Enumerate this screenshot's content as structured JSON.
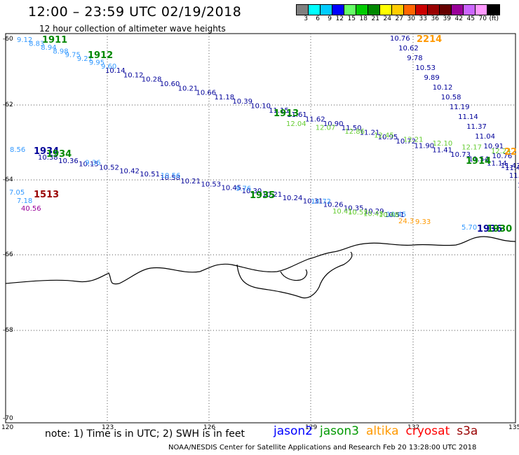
{
  "header": {
    "title": "12:00 – 23:59 UTC 02/19/2018",
    "subtitle": "12 hour collection of altimeter wave heights"
  },
  "colorbar": {
    "colors": [
      "#808080",
      "#00ffff",
      "#00ccff",
      "#0000ff",
      "#66ff66",
      "#00cc00",
      "#008800",
      "#ffff00",
      "#ffcc00",
      "#ff6600",
      "#cc0000",
      "#990000",
      "#660000",
      "#990099",
      "#cc66ff",
      "#ff99ff",
      "#000000"
    ],
    "ticks": [
      "3",
      "6",
      "9",
      "12",
      "15",
      "18",
      "21",
      "24",
      "27",
      "30",
      "33",
      "36",
      "39",
      "42",
      "45",
      "70",
      "(ft)"
    ]
  },
  "axes": {
    "lat_ticks": [
      "-60",
      "-62",
      "-64",
      "-66",
      "-68",
      "-70"
    ],
    "lon_ticks": [
      "120",
      "123",
      "126",
      "129",
      "132",
      "135"
    ]
  },
  "tracks": [
    {
      "color": "#000099",
      "labels": [
        "10.14",
        "10.12",
        "10.28",
        "10.60",
        "10.21",
        "10.66",
        "11.18",
        "10.39",
        "10.10",
        "11.15",
        "11.61",
        "11.62",
        "10.90",
        "11.50",
        "11.21",
        "10.95",
        "10.72",
        "11.90",
        "11.41",
        "10.73",
        "11.54",
        "11.14",
        "11.46"
      ]
    },
    {
      "color": "#3399ff",
      "labels": [
        "9.12",
        "8.83",
        "8.94",
        "8.98",
        "9.75",
        "9.21",
        "9.95",
        "9.60"
      ]
    },
    {
      "color": "#66cc33",
      "labels": [
        "12.04",
        "12.07",
        "12.86",
        "12.45",
        "12.21",
        "12.10",
        "12.17",
        "12.24"
      ]
    },
    {
      "color": "#000099",
      "labels": [
        "10.76",
        "10.62",
        "9.78",
        "10.53",
        "9.89",
        "10.12",
        "10.58",
        "11.19",
        "11.14",
        "11.37",
        "11.04",
        "10.91",
        "10.76",
        "11.43",
        "11.18",
        "10.9"
      ]
    },
    {
      "color": "#000099",
      "labels": [
        "10.38",
        "10.36",
        "10.15",
        "10.52",
        "10.42",
        "10.51",
        "10.58",
        "10.21",
        "10.53",
        "10.45",
        "10.30",
        "10.21",
        "10.24",
        "10.31",
        "10.26",
        "10.35",
        "10.29",
        "10.51"
      ]
    },
    {
      "color": "#3399ff",
      "labels": [
        "8.56",
        "9.36",
        "10.56",
        "9.76",
        "10.72",
        "10.45",
        "5.70"
      ]
    },
    {
      "color": "#66cc33",
      "labels": [
        "10.41",
        "10.52",
        "10.43",
        "10.48"
      ]
    },
    {
      "color": "#ff9900",
      "labels": [
        "24.3",
        "9.33"
      ]
    },
    {
      "color": "#3399ff",
      "labels": [
        "7.05",
        "7.18"
      ]
    },
    {
      "color": "#990099",
      "labels": [
        "40.56"
      ]
    }
  ],
  "time_labels": [
    {
      "text": "1911",
      "color": "#008800"
    },
    {
      "text": "1912",
      "color": "#008800"
    },
    {
      "text": "1913",
      "color": "#008800"
    },
    {
      "text": "1914",
      "color": "#008800"
    },
    {
      "text": "2214",
      "color": "#ff9900"
    },
    {
      "text": "22",
      "color": "#ff9900"
    },
    {
      "text": "1934",
      "color": "#000099"
    },
    {
      "text": "1934",
      "color": "#008800"
    },
    {
      "text": "1935",
      "color": "#008800"
    },
    {
      "text": "1936",
      "color": "#000099"
    },
    {
      "text": "1930",
      "color": "#008800"
    },
    {
      "text": "1513",
      "color": "#990000"
    }
  ],
  "note": "note: 1) Time is in UTC; 2) SWH is in feet",
  "legend": [
    {
      "label": "jason2",
      "color": "#0000ff"
    },
    {
      "label": "jason3",
      "color": "#009900"
    },
    {
      "label": "altika",
      "color": "#ff9900"
    },
    {
      "label": "cryosat",
      "color": "#ff0000"
    },
    {
      "label": "s3a",
      "color": "#990000"
    }
  ],
  "credits": "NOAA/NESDIS Center for Satellite Applications and Research     Feb 20 13:28:00 UTC 2018"
}
